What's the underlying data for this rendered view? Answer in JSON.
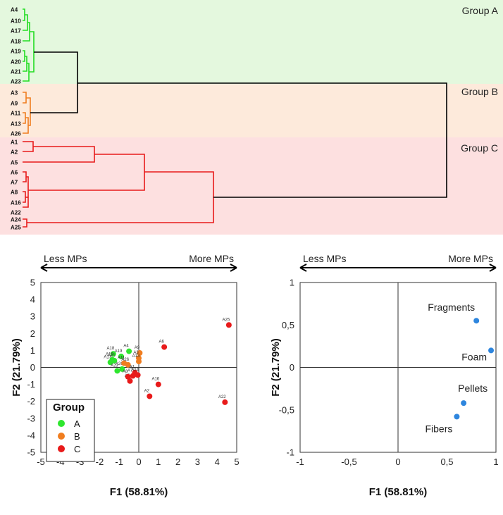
{
  "dendrogram": {
    "groups": [
      {
        "name": "Group A",
        "color": "#22dd22",
        "band": "#e4f8de",
        "leaves": [
          "A4",
          "A10",
          "A17",
          "A18",
          "A19",
          "A20",
          "A21",
          "A23"
        ]
      },
      {
        "name": "Group B",
        "color": "#f07d1f",
        "band": "#fdeadb",
        "leaves": [
          "A3",
          "A9",
          "A11",
          "A13",
          "A26"
        ]
      },
      {
        "name": "Group C",
        "color": "#e81a1a",
        "band": "#fde0e0",
        "leaves": [
          "A1",
          "A2",
          "A5",
          "A6",
          "A7",
          "A8",
          "A16",
          "A22",
          "A24",
          "A25"
        ]
      }
    ],
    "link_color": "#000000"
  },
  "chart_data": [
    {
      "type": "scatter",
      "title": "",
      "xlabel": "F1 (58.81%)",
      "ylabel": "F2 (21.79%)",
      "xlim": [
        -5,
        5
      ],
      "ylim": [
        -5,
        5
      ],
      "xticks": [
        "-5",
        "-4",
        "-3",
        "-2",
        "-1",
        "0",
        "1",
        "2",
        "3",
        "4",
        "5"
      ],
      "yticks": [
        "-5",
        "-4",
        "-3",
        "-2",
        "-1",
        "0",
        "1",
        "2",
        "3",
        "4",
        "5"
      ],
      "arrow_left_label": "Less MPs",
      "arrow_right_label": "More MPs",
      "legend": {
        "title": "Group",
        "placement": "bottom-left",
        "entries": [
          {
            "label": "A",
            "color": "#2ee62e"
          },
          {
            "label": "B",
            "color": "#f07d1f"
          },
          {
            "label": "C",
            "color": "#e81a1a"
          }
        ]
      },
      "points": [
        {
          "label": "A4",
          "x": -0.5,
          "y": 0.95,
          "group": "A"
        },
        {
          "label": "A18",
          "x": -1.3,
          "y": 0.8,
          "group": "A"
        },
        {
          "label": "A19",
          "x": -0.9,
          "y": 0.65,
          "group": "A"
        },
        {
          "label": "A10",
          "x": -1.35,
          "y": 0.45,
          "group": "A"
        },
        {
          "label": "A17",
          "x": -1.45,
          "y": 0.3,
          "group": "A"
        },
        {
          "label": "A23",
          "x": -1.1,
          "y": -0.2,
          "group": "A"
        },
        {
          "label": "A20",
          "x": -0.85,
          "y": -0.1,
          "group": "A"
        },
        {
          "label": "A21",
          "x": -1.25,
          "y": 0.4,
          "group": "A"
        },
        {
          "label": "A9",
          "x": 0.05,
          "y": 0.85,
          "group": "B"
        },
        {
          "label": "A3",
          "x": 0.0,
          "y": 0.55,
          "group": "B"
        },
        {
          "label": "A13",
          "x": 0.0,
          "y": 0.35,
          "group": "B"
        },
        {
          "label": "A11",
          "x": -0.75,
          "y": 0.25,
          "group": "B"
        },
        {
          "label": "A26",
          "x": -0.55,
          "y": 0.15,
          "group": "B"
        },
        {
          "label": "A1",
          "x": -0.2,
          "y": -0.3,
          "group": "C"
        },
        {
          "label": "A2",
          "x": 0.55,
          "y": -1.7,
          "group": "C"
        },
        {
          "label": "A5",
          "x": -0.45,
          "y": -0.8,
          "group": "C"
        },
        {
          "label": "A6",
          "x": 1.3,
          "y": 1.2,
          "group": "C"
        },
        {
          "label": "A7",
          "x": -0.3,
          "y": -0.5,
          "group": "C"
        },
        {
          "label": "A8",
          "x": -0.55,
          "y": -0.55,
          "group": "C"
        },
        {
          "label": "A16",
          "x": 1.0,
          "y": -1.0,
          "group": "C"
        },
        {
          "label": "A22",
          "x": 4.4,
          "y": -2.05,
          "group": "C"
        },
        {
          "label": "A24",
          "x": -0.05,
          "y": -0.45,
          "group": "C"
        },
        {
          "label": "A25",
          "x": 4.6,
          "y": 2.5,
          "group": "C"
        }
      ]
    },
    {
      "type": "scatter",
      "title": "",
      "xlabel": "F1 (58.81%)",
      "ylabel": "F2 (21.79%)",
      "xlim": [
        -1,
        1
      ],
      "ylim": [
        -1,
        1
      ],
      "xticks": [
        "-1",
        "-0,5",
        "0",
        "0,5",
        "1"
      ],
      "yticks": [
        "-1",
        "-0,5",
        "0",
        "0,5",
        "1"
      ],
      "arrow_left_label": "Less MPs",
      "arrow_right_label": "More MPs",
      "point_color": "#2e86de",
      "points": [
        {
          "label": "Fragments",
          "x": 0.8,
          "y": 0.55
        },
        {
          "label": "Foam",
          "x": 0.95,
          "y": 0.2
        },
        {
          "label": "Pellets",
          "x": 0.67,
          "y": -0.42
        },
        {
          "label": "Fibers",
          "x": 0.6,
          "y": -0.58
        }
      ]
    }
  ]
}
